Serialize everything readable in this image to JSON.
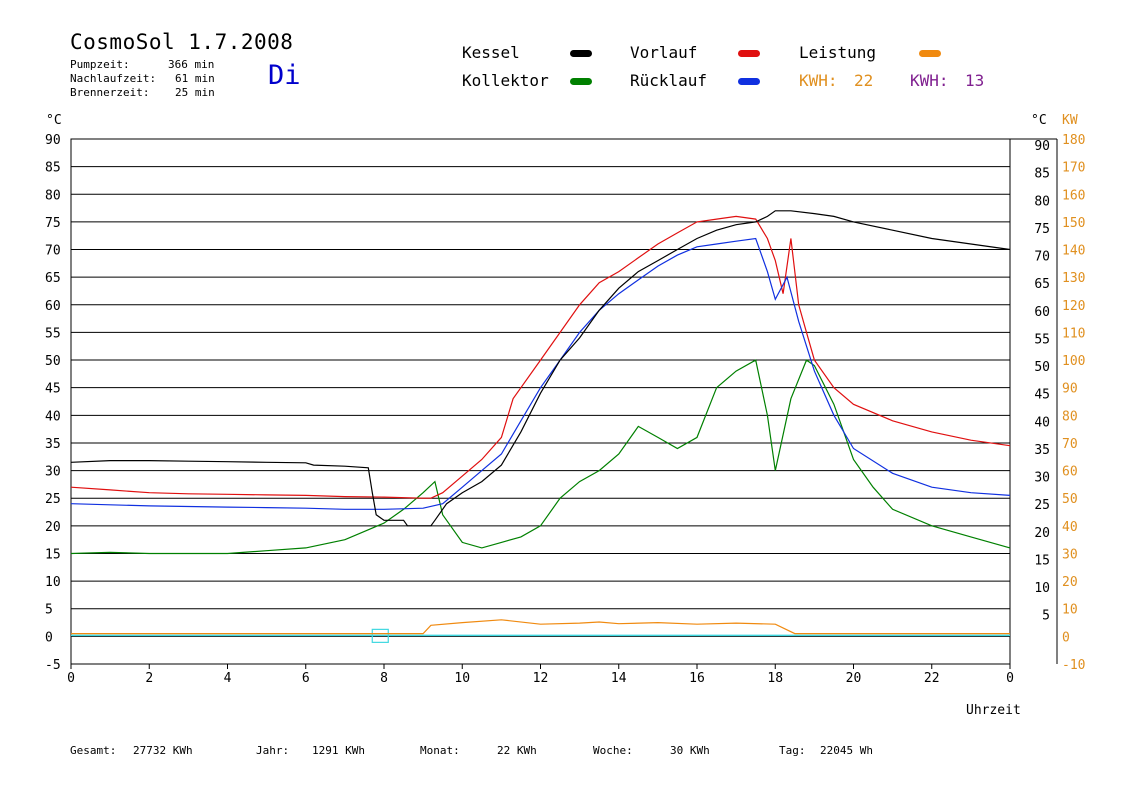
{
  "header": {
    "title": "CosmoSol 1.7.2008",
    "stats": [
      {
        "label": "Pumpzeit:",
        "value": "366 min"
      },
      {
        "label": "Nachlaufzeit:",
        "value": "61 min"
      },
      {
        "label": "Brennerzeit:",
        "value": "25 min"
      }
    ],
    "day": "Di"
  },
  "legend": {
    "kessel": "Kessel",
    "kollektor": "Kollektor",
    "vorlauf": "Vorlauf",
    "ruecklauf": "Rücklauf",
    "leistung": "Leistung",
    "kwh1_label": "KWH:",
    "kwh1_value": "22",
    "kwh2_label": "KWH:",
    "kwh2_value": "13"
  },
  "colors": {
    "kessel": "#000000",
    "kollektor": "#008000",
    "vorlauf": "#e01010",
    "ruecklauf": "#1030e0",
    "leistung": "#f08a10",
    "kwh_orange": "#e09020",
    "kwh_purple": "#802090",
    "cyan": "#40d8e0"
  },
  "axes": {
    "left_unit": "°C",
    "right_unit": "°C",
    "right_kw_unit": "KW",
    "x_label": "Uhrzeit"
  },
  "footer": [
    {
      "label": "Gesamt:",
      "value": "27732 KWh"
    },
    {
      "label": "Jahr:",
      "value": "1291 KWh"
    },
    {
      "label": "Monat:",
      "value": "22 KWh"
    },
    {
      "label": "Woche:",
      "value": "30 KWh"
    },
    {
      "label": "Tag:",
      "value": "22045 Wh"
    }
  ],
  "chart_data": {
    "type": "line",
    "title": "CosmoSol 1.7.2008",
    "xlabel": "Uhrzeit",
    "ylabel": "°C",
    "xlim": [
      0,
      24
    ],
    "ylim": [
      -5,
      90
    ],
    "y2lim": [
      -10,
      180
    ],
    "x_ticks": [
      "0",
      "2",
      "4",
      "6",
      "8",
      "10",
      "12",
      "14",
      "16",
      "18",
      "20",
      "22",
      "0"
    ],
    "y_ticks": [
      90,
      85,
      80,
      75,
      70,
      65,
      60,
      55,
      50,
      45,
      40,
      35,
      30,
      25,
      20,
      15,
      10,
      5,
      0,
      -5
    ],
    "y_ticks_right": [
      90,
      85,
      80,
      75,
      70,
      65,
      60,
      55,
      50,
      45,
      40,
      35,
      30,
      25,
      20,
      15,
      10,
      5
    ],
    "kw_ticks": [
      180,
      170,
      160,
      150,
      140,
      130,
      120,
      110,
      100,
      90,
      80,
      70,
      60,
      50,
      40,
      30,
      20,
      10,
      0,
      -10
    ],
    "grid": true,
    "series": [
      {
        "name": "Kessel",
        "color": "#000000",
        "points": [
          [
            0,
            31.5
          ],
          [
            1,
            31.8
          ],
          [
            2,
            31.8
          ],
          [
            3,
            31.7
          ],
          [
            4,
            31.6
          ],
          [
            5,
            31.5
          ],
          [
            6,
            31.4
          ],
          [
            6.2,
            31
          ],
          [
            7,
            30.8
          ],
          [
            7.6,
            30.5
          ],
          [
            7.7,
            26
          ],
          [
            7.8,
            22
          ],
          [
            8,
            21
          ],
          [
            8.5,
            21
          ],
          [
            8.6,
            20
          ],
          [
            9.2,
            20
          ],
          [
            9.3,
            21
          ],
          [
            9.6,
            24
          ],
          [
            10,
            26
          ],
          [
            10.5,
            28
          ],
          [
            11,
            31
          ],
          [
            11.5,
            37
          ],
          [
            12,
            44
          ],
          [
            12.5,
            50
          ],
          [
            13,
            54
          ],
          [
            13.5,
            59
          ],
          [
            14,
            63
          ],
          [
            14.5,
            66
          ],
          [
            15,
            68
          ],
          [
            15.5,
            70
          ],
          [
            16,
            72
          ],
          [
            16.5,
            73.5
          ],
          [
            17,
            74.5
          ],
          [
            17.5,
            75
          ],
          [
            17.8,
            76
          ],
          [
            18,
            77
          ],
          [
            18.4,
            77
          ],
          [
            19,
            76.5
          ],
          [
            19.5,
            76
          ],
          [
            20,
            75
          ],
          [
            21,
            73.5
          ],
          [
            22,
            72
          ],
          [
            23,
            71
          ],
          [
            24,
            70
          ]
        ]
      },
      {
        "name": "Vorlauf",
        "color": "#e01010",
        "points": [
          [
            0,
            27
          ],
          [
            1,
            26.5
          ],
          [
            2,
            26
          ],
          [
            3,
            25.8
          ],
          [
            4,
            25.7
          ],
          [
            5,
            25.6
          ],
          [
            6,
            25.5
          ],
          [
            7,
            25.3
          ],
          [
            8,
            25.2
          ],
          [
            9,
            25.0
          ],
          [
            9.2,
            25.0
          ],
          [
            9.5,
            26
          ],
          [
            10,
            29
          ],
          [
            10.5,
            32
          ],
          [
            11,
            36
          ],
          [
            11.3,
            43
          ],
          [
            11.5,
            45
          ],
          [
            12,
            50
          ],
          [
            12.5,
            55
          ],
          [
            13,
            60
          ],
          [
            13.5,
            64
          ],
          [
            14,
            66
          ],
          [
            14.5,
            68.5
          ],
          [
            15,
            71
          ],
          [
            15.5,
            73
          ],
          [
            16,
            75
          ],
          [
            16.5,
            75.5
          ],
          [
            17,
            76
          ],
          [
            17.5,
            75.5
          ],
          [
            17.8,
            72
          ],
          [
            18,
            68
          ],
          [
            18.2,
            62
          ],
          [
            18.4,
            72
          ],
          [
            18.6,
            60
          ],
          [
            18.8,
            55
          ],
          [
            19,
            50
          ],
          [
            19.5,
            45
          ],
          [
            20,
            42
          ],
          [
            21,
            39
          ],
          [
            22,
            37
          ],
          [
            23,
            35.5
          ],
          [
            24,
            34.5
          ]
        ]
      },
      {
        "name": "Rücklauf",
        "color": "#1030e0",
        "points": [
          [
            0,
            24
          ],
          [
            1,
            23.8
          ],
          [
            2,
            23.6
          ],
          [
            3,
            23.5
          ],
          [
            4,
            23.4
          ],
          [
            5,
            23.3
          ],
          [
            6,
            23.2
          ],
          [
            7,
            23.0
          ],
          [
            8,
            23.0
          ],
          [
            9,
            23.2
          ],
          [
            9.5,
            24
          ],
          [
            10,
            27
          ],
          [
            10.5,
            30
          ],
          [
            11,
            33
          ],
          [
            11.5,
            39
          ],
          [
            12,
            45
          ],
          [
            12.5,
            50
          ],
          [
            13,
            55
          ],
          [
            13.5,
            59
          ],
          [
            14,
            62
          ],
          [
            14.5,
            64.5
          ],
          [
            15,
            67
          ],
          [
            15.5,
            69
          ],
          [
            16,
            70.5
          ],
          [
            16.5,
            71
          ],
          [
            17,
            71.5
          ],
          [
            17.5,
            72
          ],
          [
            17.8,
            66
          ],
          [
            18,
            61
          ],
          [
            18.3,
            65
          ],
          [
            18.6,
            57
          ],
          [
            19,
            48
          ],
          [
            19.5,
            40
          ],
          [
            20,
            34
          ],
          [
            21,
            29.5
          ],
          [
            22,
            27
          ],
          [
            23,
            26
          ],
          [
            24,
            25.5
          ]
        ]
      },
      {
        "name": "Kollektor",
        "color": "#008000",
        "points": [
          [
            0,
            15
          ],
          [
            1,
            15.2
          ],
          [
            2,
            15
          ],
          [
            3,
            15
          ],
          [
            4,
            15
          ],
          [
            5,
            15.5
          ],
          [
            6,
            16
          ],
          [
            7,
            17.5
          ],
          [
            7.5,
            19
          ],
          [
            8,
            20.5
          ],
          [
            8.5,
            23
          ],
          [
            9,
            26
          ],
          [
            9.3,
            28
          ],
          [
            9.5,
            22
          ],
          [
            10,
            17
          ],
          [
            10.5,
            16
          ],
          [
            11,
            17
          ],
          [
            11.5,
            18
          ],
          [
            12,
            20
          ],
          [
            12.5,
            25
          ],
          [
            13,
            28
          ],
          [
            13.5,
            30
          ],
          [
            14,
            33
          ],
          [
            14.5,
            38
          ],
          [
            15,
            36
          ],
          [
            15.5,
            34
          ],
          [
            16,
            36
          ],
          [
            16.5,
            45
          ],
          [
            17,
            48
          ],
          [
            17.5,
            50
          ],
          [
            17.8,
            40
          ],
          [
            18,
            30
          ],
          [
            18.4,
            43
          ],
          [
            18.8,
            50
          ],
          [
            19,
            49
          ],
          [
            19.5,
            42
          ],
          [
            20,
            32
          ],
          [
            20.5,
            27
          ],
          [
            21,
            23
          ],
          [
            22,
            20
          ],
          [
            23,
            18
          ],
          [
            24,
            16
          ]
        ]
      },
      {
        "name": "Leistung",
        "color": "#f08a10",
        "points": [
          [
            0,
            0.5
          ],
          [
            9,
            0.5
          ],
          [
            9.2,
            2
          ],
          [
            10,
            2.5
          ],
          [
            11,
            3
          ],
          [
            12,
            2.2
          ],
          [
            13,
            2.4
          ],
          [
            13.5,
            2.6
          ],
          [
            14,
            2.3
          ],
          [
            15,
            2.5
          ],
          [
            16,
            2.2
          ],
          [
            17,
            2.4
          ],
          [
            18,
            2.2
          ],
          [
            18.5,
            0.5
          ],
          [
            24,
            0.5
          ]
        ]
      }
    ]
  }
}
